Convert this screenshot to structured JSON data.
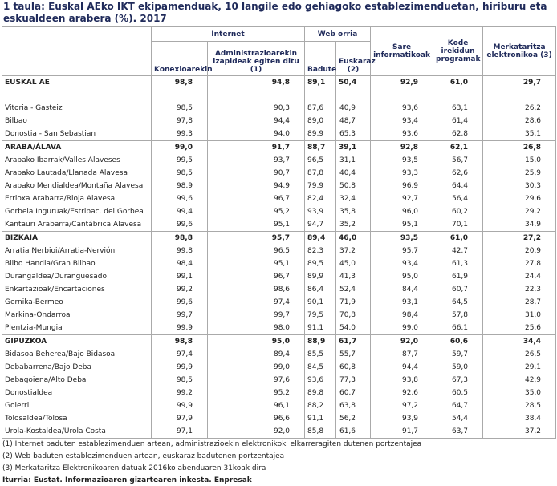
{
  "title": "1 taula: Euskal AEko IKT ekipamenduak, 10 langile edo gehiagoko establezimenduetan, hiriburu eta eskualdeen arabera (%). 2017",
  "header": {
    "internet": "Internet",
    "web": "Web orria",
    "columns": [
      "Konexioarekin",
      "Administrazioarekin izapideak egiten ditu (1)",
      "Badute",
      "Euskaraz (2)",
      "Sare informatikoak",
      "Kode irekidun programak",
      "Merkataritza elektronikoa (3)"
    ]
  },
  "table": {
    "total": {
      "label": "EUSKAL AE",
      "values": [
        "98,8",
        "94,8",
        "89,1",
        "50,4",
        "92,9",
        "61,0",
        "29,7"
      ]
    },
    "capitals": [
      {
        "label": "Vitoria - Gasteiz",
        "values": [
          "98,5",
          "90,3",
          "87,6",
          "40,9",
          "93,6",
          "63,1",
          "26,2"
        ]
      },
      {
        "label": "Bilbao",
        "values": [
          "97,8",
          "94,4",
          "89,0",
          "48,7",
          "93,4",
          "61,4",
          "28,6"
        ]
      },
      {
        "label": "Donostia - San Sebastian",
        "values": [
          "99,3",
          "94,0",
          "89,9",
          "65,3",
          "93,6",
          "62,8",
          "35,1"
        ]
      }
    ],
    "regions": [
      {
        "label": "ARABA/ÁLAVA",
        "values": [
          "99,0",
          "91,7",
          "88,7",
          "39,1",
          "92,8",
          "62,1",
          "26,8"
        ],
        "subregions": [
          {
            "label": "Arabako Ibarrak/Valles Alaveses",
            "values": [
              "99,5",
              "93,7",
              "96,5",
              "31,1",
              "93,5",
              "56,7",
              "15,0"
            ]
          },
          {
            "label": "Arabako Lautada/Llanada Alavesa",
            "values": [
              "98,5",
              "90,7",
              "87,8",
              "40,4",
              "93,3",
              "62,6",
              "25,9"
            ]
          },
          {
            "label": "Arabako Mendialdea/Montaña Alavesa",
            "values": [
              "98,9",
              "94,9",
              "79,9",
              "50,8",
              "96,9",
              "64,4",
              "30,3"
            ]
          },
          {
            "label": "Errioxa Arabarra/Rioja Alavesa",
            "values": [
              "99,6",
              "96,7",
              "82,4",
              "32,4",
              "92,7",
              "56,4",
              "29,6"
            ]
          },
          {
            "label": "Gorbeia Inguruak/Estribac. del Gorbea",
            "values": [
              "99,4",
              "95,2",
              "93,9",
              "35,8",
              "96,0",
              "60,2",
              "29,2"
            ]
          },
          {
            "label": "Kantauri Arabarra/Cantábrica Alavesa",
            "values": [
              "99,6",
              "95,1",
              "94,7",
              "35,2",
              "95,1",
              "70,1",
              "34,9"
            ]
          }
        ]
      },
      {
        "label": "BIZKAIA",
        "values": [
          "98,8",
          "95,7",
          "89,4",
          "46,0",
          "93,5",
          "61,0",
          "27,2"
        ],
        "subregions": [
          {
            "label": "Arratia Nerbioi/Arratia-Nervión",
            "values": [
              "99,8",
              "96,5",
              "82,3",
              "37,2",
              "95,7",
              "42,7",
              "20,9"
            ]
          },
          {
            "label": "Bilbo Handia/Gran Bilbao",
            "values": [
              "98,4",
              "95,1",
              "89,5",
              "45,0",
              "93,4",
              "61,3",
              "27,8"
            ]
          },
          {
            "label": "Durangaldea/Duranguesado",
            "values": [
              "99,1",
              "96,7",
              "89,9",
              "41,3",
              "95,0",
              "61,9",
              "24,4"
            ]
          },
          {
            "label": "Enkartazioak/Encartaciones",
            "values": [
              "99,2",
              "98,6",
              "86,4",
              "52,4",
              "84,4",
              "60,7",
              "22,3"
            ]
          },
          {
            "label": "Gernika-Bermeo",
            "values": [
              "99,6",
              "97,4",
              "90,1",
              "71,9",
              "93,1",
              "64,5",
              "28,7"
            ]
          },
          {
            "label": "Markina-Ondarroa",
            "values": [
              "99,7",
              "99,7",
              "79,5",
              "70,8",
              "98,4",
              "57,8",
              "31,0"
            ]
          },
          {
            "label": "Plentzia-Mungia",
            "values": [
              "99,9",
              "98,0",
              "91,1",
              "54,0",
              "99,0",
              "66,1",
              "25,6"
            ]
          }
        ]
      },
      {
        "label": "GIPUZKOA",
        "values": [
          "98,8",
          "95,0",
          "88,9",
          "61,7",
          "92,0",
          "60,6",
          "34,4"
        ],
        "subregions": [
          {
            "label": "Bidasoa Beherea/Bajo Bidasoa",
            "values": [
              "97,4",
              "89,4",
              "85,5",
              "55,7",
              "87,7",
              "59,7",
              "26,5"
            ]
          },
          {
            "label": "Debabarrena/Bajo Deba",
            "values": [
              "99,9",
              "99,0",
              "84,5",
              "60,8",
              "94,4",
              "59,0",
              "29,1"
            ]
          },
          {
            "label": "Debagoiena/Alto Deba",
            "values": [
              "98,5",
              "97,6",
              "93,6",
              "77,3",
              "93,8",
              "67,3",
              "42,9"
            ]
          },
          {
            "label": "Donostialdea",
            "values": [
              "99,2",
              "95,2",
              "89,8",
              "60,7",
              "92,6",
              "60,5",
              "35,0"
            ]
          },
          {
            "label": "Goierri",
            "values": [
              "99,9",
              "96,1",
              "88,2",
              "63,8",
              "97,2",
              "64,7",
              "28,5"
            ]
          },
          {
            "label": "Tolosaldea/Tolosa",
            "values": [
              "97,9",
              "96,6",
              "91,1",
              "56,2",
              "93,9",
              "54,4",
              "38,4"
            ]
          },
          {
            "label": "Urola-Kostaldea/Urola Costa",
            "values": [
              "97,1",
              "92,0",
              "85,8",
              "61,6",
              "91,7",
              "63,7",
              "37,2"
            ]
          }
        ]
      }
    ]
  },
  "notes": [
    "(1) Internet baduten establezimenduen artean, administrazioekin elektronikoki elkarreragiten dutenen portzentajea",
    "(2) Web baduten establezimenduen artean, euskaraz badutenen portzentajea",
    "(3) Merkataritza Elektronikoaren datuak 2016ko abenduaren 31koak dira"
  ],
  "source": "Iturria: Eustat. Informazioaren gizartearen inkesta. Enpresak"
}
